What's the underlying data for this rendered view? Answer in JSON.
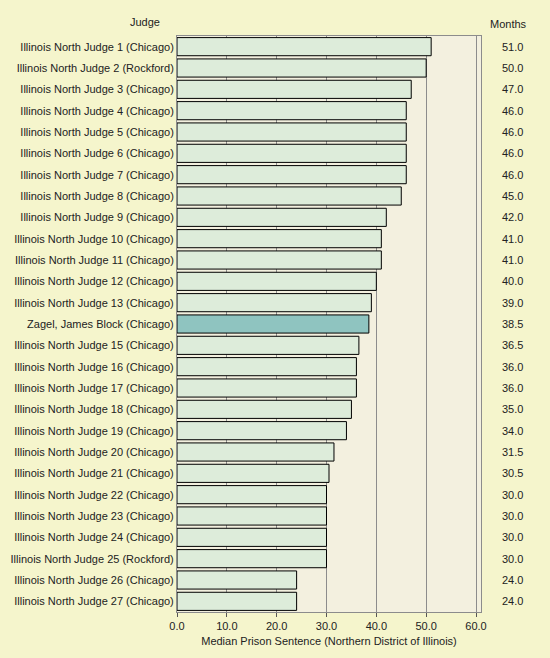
{
  "chart_data": {
    "type": "bar",
    "orientation": "horizontal",
    "ylabel": "Judge",
    "xlabel": "Median Prison Sentence (Northern District of Illinois)",
    "annotations": [
      "Months"
    ],
    "categories": [
      "Illinois North Judge 1 (Chicago)",
      "Illinois North Judge 2 (Rockford)",
      "Illinois North Judge 3 (Chicago)",
      "Illinois North Judge 4 (Chicago)",
      "Illinois North Judge 5 (Chicago)",
      "Illinois North Judge 6 (Chicago)",
      "Illinois North Judge 7 (Chicago)",
      "Illinois North Judge 8 (Chicago)",
      "Illinois North Judge 9 (Chicago)",
      "Illinois North Judge 10 (Chicago)",
      "Illinois North Judge 11 (Chicago)",
      "Illinois North Judge 12 (Chicago)",
      "Illinois North Judge 13 (Chicago)",
      "Zagel, James Block (Chicago)",
      "Illinois North Judge 15 (Chicago)",
      "Illinois North Judge 16 (Chicago)",
      "Illinois North Judge 17 (Chicago)",
      "Illinois North Judge 18 (Chicago)",
      "Illinois North Judge 19 (Chicago)",
      "Illinois North Judge 20 (Chicago)",
      "Illinois North Judge 21 (Chicago)",
      "Illinois North Judge 22 (Chicago)",
      "Illinois North Judge 23 (Chicago)",
      "Illinois North Judge 24 (Chicago)",
      "Illinois North Judge 25 (Rockford)",
      "Illinois North Judge 26 (Chicago)",
      "Illinois North Judge 27 (Chicago)"
    ],
    "values": [
      51,
      50,
      47,
      46,
      46,
      46,
      46,
      45,
      42,
      41,
      41,
      40,
      39,
      38.5,
      36.5,
      36,
      36,
      35,
      34,
      31.5,
      30.5,
      30,
      30,
      30,
      30,
      24,
      24
    ],
    "data_labels": true,
    "value_labels": [
      "51.0",
      "50.0",
      "47.0",
      "46.0",
      "46.0",
      "46.0",
      "46.0",
      "45.0",
      "42.0",
      "41.0",
      "41.0",
      "40.0",
      "39.0",
      "38.5",
      "36.5",
      "36.0",
      "36.0",
      "35.0",
      "34.0",
      "31.5",
      "30.5",
      "30.0",
      "30.0",
      "30.0",
      "30.0",
      "24.0",
      "24.0"
    ],
    "colors": [
      "#ddecda",
      "#ddecda",
      "#ddecda",
      "#ddecda",
      "#ddecda",
      "#ddecda",
      "#ddecda",
      "#ddecda",
      "#ddecda",
      "#ddecda",
      "#ddecda",
      "#ddecda",
      "#ddecda",
      "#8fc4c0",
      "#ddecda",
      "#ddecda",
      "#ddecda",
      "#ddecda",
      "#ddecda",
      "#ddecda",
      "#ddecda",
      "#ddecda",
      "#ddecda",
      "#ddecda",
      "#ddecda",
      "#ddecda",
      "#ddecda"
    ],
    "xlim": [
      0,
      61
    ],
    "xticks": [
      {
        "value": 0,
        "label": "0.0"
      },
      {
        "value": 10,
        "label": "10.0"
      },
      {
        "value": 20,
        "label": "20.0"
      },
      {
        "value": 30,
        "label": "30.0"
      },
      {
        "value": 40,
        "label": "40.0"
      },
      {
        "value": 50,
        "label": "50.0"
      },
      {
        "value": 60,
        "label": "60.0"
      }
    ],
    "grid": true
  }
}
